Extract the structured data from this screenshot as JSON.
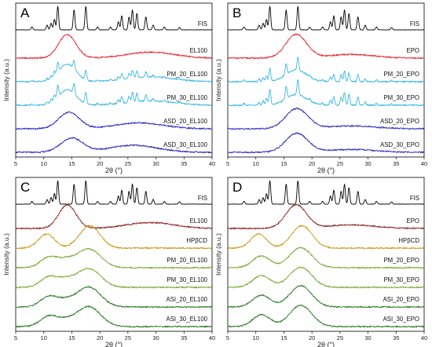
{
  "chart_data": [
    {
      "type": "line",
      "panel": "A",
      "xlabel": "2θ (°)",
      "ylabel": "Intensity (a.u.)",
      "xlim": [
        5,
        40
      ],
      "xticks": [
        5,
        10,
        15,
        20,
        25,
        30,
        35,
        40
      ],
      "series": [
        {
          "name": "FIS",
          "color": "#000000",
          "kind": "crystalline"
        },
        {
          "name": "EL100",
          "color": "#e8202a",
          "kind": "halo",
          "halos": [
            [
              14.2,
              1.0,
              2.2
            ],
            [
              29,
              0.25,
              6
            ]
          ]
        },
        {
          "name": "PM_20_EL100",
          "color": "#39b8e3",
          "kind": "mix",
          "crystalline_fraction": 0.4,
          "halos": [
            [
              14.2,
              0.75,
              2.2
            ],
            [
              29,
              0.2,
              6
            ]
          ]
        },
        {
          "name": "PM_30_EL100",
          "color": "#39b8e3",
          "kind": "mix",
          "crystalline_fraction": 0.5,
          "halos": [
            [
              14.2,
              0.65,
              2.2
            ],
            [
              29,
              0.18,
              6
            ]
          ]
        },
        {
          "name": "ASD_20_EL100",
          "color": "#2626c4",
          "kind": "halo",
          "halos": [
            [
              14.5,
              0.7,
              2.6
            ],
            [
              27,
              0.25,
              6
            ]
          ]
        },
        {
          "name": "ASD_30_EL100",
          "color": "#2626c4",
          "kind": "halo",
          "halos": [
            [
              15,
              0.6,
              2.8
            ],
            [
              26,
              0.3,
              6
            ]
          ]
        }
      ]
    },
    {
      "type": "line",
      "panel": "B",
      "xlabel": "2θ (°)",
      "ylabel": "Intensity (a.u.)",
      "xlim": [
        5,
        40
      ],
      "xticks": [
        5,
        10,
        15,
        20,
        25,
        30,
        35,
        40
      ],
      "series": [
        {
          "name": "FIS",
          "color": "#000000",
          "kind": "crystalline"
        },
        {
          "name": "EPO",
          "color": "#e8202a",
          "kind": "halo",
          "halos": [
            [
              17.2,
              1.0,
              2.6
            ],
            [
              27,
              0.15,
              6
            ]
          ]
        },
        {
          "name": "PM_20_EPO",
          "color": "#39b8e3",
          "kind": "mix",
          "crystalline_fraction": 0.55,
          "halos": [
            [
              17.2,
              0.5,
              2.6
            ]
          ]
        },
        {
          "name": "PM_30_EPO",
          "color": "#39b8e3",
          "kind": "mix",
          "crystalline_fraction": 0.65,
          "halos": [
            [
              17.2,
              0.45,
              2.6
            ]
          ]
        },
        {
          "name": "ASD_20_EPO",
          "color": "#2626c4",
          "kind": "halo",
          "halos": [
            [
              17.3,
              0.85,
              2.8
            ],
            [
              27,
              0.12,
              6
            ]
          ]
        },
        {
          "name": "ASD_30_EPO",
          "color": "#2626c4",
          "kind": "halo",
          "halos": [
            [
              17.3,
              0.8,
              2.8
            ],
            [
              27,
              0.12,
              6
            ]
          ]
        }
      ]
    },
    {
      "type": "line",
      "panel": "C",
      "xlabel": "2θ (°)",
      "ylabel": "Intensity (a.u.)",
      "xlim": [
        5,
        40
      ],
      "xticks": [
        5,
        10,
        15,
        20,
        25,
        30,
        35,
        40
      ],
      "series": [
        {
          "name": "FIS",
          "color": "#000000",
          "kind": "crystalline"
        },
        {
          "name": "EL100",
          "color": "#8b2020",
          "kind": "halo",
          "halos": [
            [
              14.2,
              1.0,
              2.2
            ],
            [
              29,
              0.25,
              6
            ]
          ]
        },
        {
          "name": "HPβCD",
          "color": "#c89a10",
          "kind": "halo",
          "halos": [
            [
              10.5,
              0.6,
              2.0
            ],
            [
              18.2,
              0.95,
              2.6
            ]
          ]
        },
        {
          "name": "PM_20_EL100",
          "color": "#7aa832",
          "kind": "halo",
          "halos": [
            [
              11,
              0.45,
              2.2
            ],
            [
              18,
              0.8,
              3.0
            ],
            [
              14,
              0.25,
              2.0
            ]
          ]
        },
        {
          "name": "PM_30_EL100",
          "color": "#7aa832",
          "kind": "halo",
          "halos": [
            [
              11,
              0.45,
              2.2
            ],
            [
              18,
              0.8,
              3.0
            ],
            [
              14,
              0.25,
              2.0
            ]
          ]
        },
        {
          "name": "ASI_20_EL100",
          "color": "#2e7a26",
          "kind": "halo",
          "halos": [
            [
              11,
              0.45,
              2.2
            ],
            [
              18,
              0.85,
              3.0
            ],
            [
              14,
              0.2,
              2.0
            ]
          ]
        },
        {
          "name": "ASI_30_EL100",
          "color": "#2e7a26",
          "kind": "halo",
          "halos": [
            [
              11,
              0.45,
              2.2
            ],
            [
              18,
              0.85,
              3.0
            ],
            [
              14,
              0.2,
              2.0
            ]
          ]
        }
      ]
    },
    {
      "type": "line",
      "panel": "D",
      "xlabel": "2θ (°)",
      "ylabel": "Intensity (a.u.)",
      "xlim": [
        5,
        40
      ],
      "xticks": [
        5,
        10,
        15,
        20,
        25,
        30,
        35,
        40
      ],
      "series": [
        {
          "name": "FIS",
          "color": "#000000",
          "kind": "crystalline"
        },
        {
          "name": "EPO",
          "color": "#8b2020",
          "kind": "halo",
          "halos": [
            [
              17.2,
              1.0,
              2.6
            ],
            [
              27,
              0.15,
              6
            ]
          ]
        },
        {
          "name": "HPβCD",
          "color": "#c89a10",
          "kind": "halo",
          "halos": [
            [
              10.5,
              0.6,
              2.0
            ],
            [
              18.2,
              0.95,
              2.6
            ]
          ]
        },
        {
          "name": "PM_20_EPO",
          "color": "#7aa832",
          "kind": "halo",
          "halos": [
            [
              11,
              0.5,
              2.2
            ],
            [
              18,
              0.85,
              2.8
            ]
          ]
        },
        {
          "name": "PM_30_EPO",
          "color": "#7aa832",
          "kind": "halo",
          "halos": [
            [
              11,
              0.5,
              2.2
            ],
            [
              18,
              0.85,
              2.8
            ]
          ]
        },
        {
          "name": "ASI_20_EPO",
          "color": "#2e7a26",
          "kind": "halo",
          "halos": [
            [
              11,
              0.5,
              2.2
            ],
            [
              18,
              0.9,
              2.8
            ]
          ]
        },
        {
          "name": "ASI_30_EPO",
          "color": "#2e7a26",
          "kind": "halo",
          "halos": [
            [
              11,
              0.5,
              2.2
            ],
            [
              18,
              0.9,
              2.8
            ]
          ]
        }
      ]
    }
  ],
  "fis_reflections_2theta": [
    [
      7.9,
      0.12
    ],
    [
      10.6,
      0.2
    ],
    [
      11.3,
      0.28
    ],
    [
      11.9,
      0.45
    ],
    [
      12.5,
      1.0
    ],
    [
      15.4,
      0.85
    ],
    [
      17.5,
      1.0
    ],
    [
      19.6,
      0.12
    ],
    [
      21.9,
      0.12
    ],
    [
      23.3,
      0.35
    ],
    [
      23.9,
      0.6
    ],
    [
      25.2,
      0.55
    ],
    [
      25.8,
      0.85
    ],
    [
      26.6,
      0.7
    ],
    [
      28.2,
      0.55
    ],
    [
      29.5,
      0.2
    ],
    [
      31.5,
      0.12
    ],
    [
      34.2,
      0.1
    ]
  ]
}
